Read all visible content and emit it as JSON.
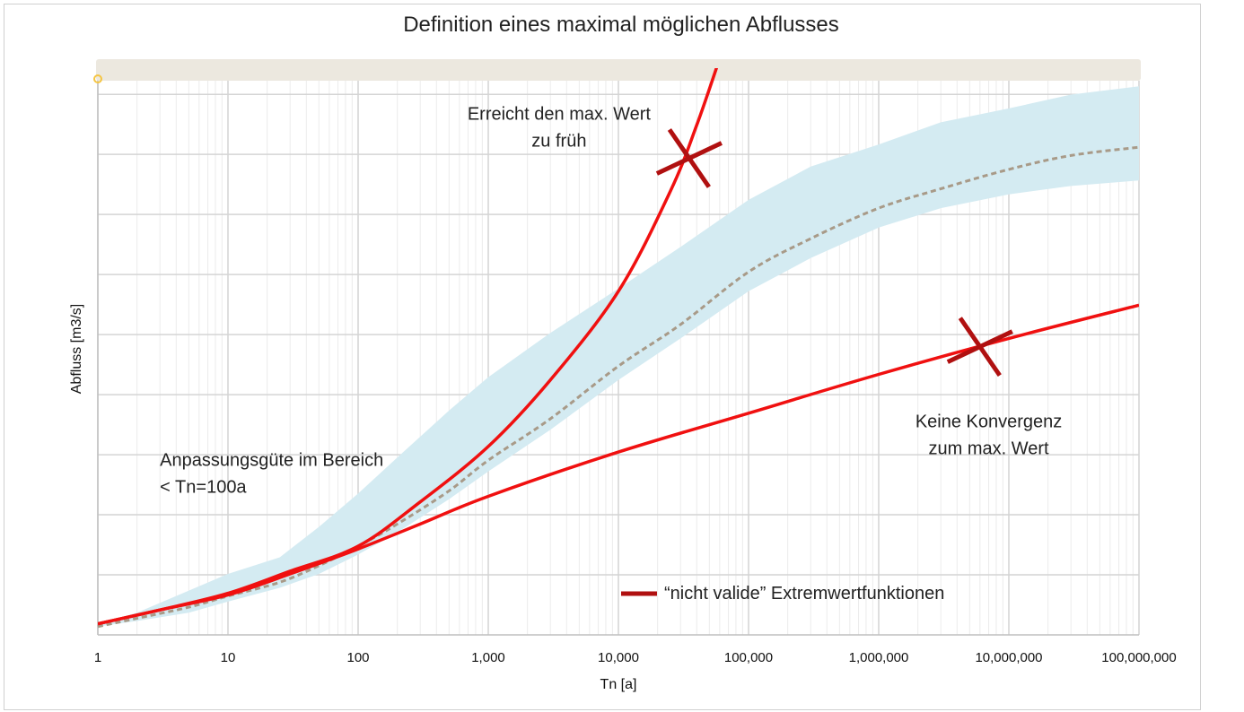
{
  "chart_data": {
    "type": "line",
    "title": "Definition eines maximal möglichen Abflusses",
    "xlabel": "Tn [a]",
    "ylabel": "Abfluss [m3/s]",
    "x_scale": "log",
    "xlim": [
      1,
      100000000
    ],
    "ylim": [
      0,
      10
    ],
    "y_tick_labels_shown": false,
    "grid": "on",
    "x_tick_labels": [
      "1",
      "10",
      "100",
      "1,000",
      "10,000",
      "100,000",
      "1,000,000",
      "10,000,000",
      "100,000,000"
    ],
    "x_tick_values": [
      1,
      10,
      100,
      1000,
      10000,
      100000,
      1000000,
      10000000,
      100000000
    ],
    "band_top_color": "#ece8df",
    "colors": {
      "red": "#f01010",
      "darkred": "#b01010",
      "band": "#d4ebf2",
      "dash": "#a89a88"
    },
    "series": [
      {
        "kind": "band",
        "x": [
          1,
          2,
          5,
          10,
          25,
          50,
          100,
          200,
          500,
          1000,
          3000,
          10000,
          30000,
          100000,
          300000,
          1000000,
          3000000,
          10000000,
          30000000,
          100000000
        ],
        "lower": [
          0.15,
          0.25,
          0.4,
          0.6,
          0.85,
          1.1,
          1.45,
          1.85,
          2.45,
          2.95,
          3.7,
          4.6,
          5.35,
          6.2,
          6.8,
          7.35,
          7.7,
          7.95,
          8.1,
          8.2
        ],
        "upper": [
          0.2,
          0.4,
          0.8,
          1.1,
          1.4,
          1.95,
          2.55,
          3.2,
          4.05,
          4.65,
          5.45,
          6.25,
          7.0,
          7.85,
          8.45,
          8.85,
          9.25,
          9.5,
          9.75,
          9.9
        ]
      },
      {
        "kind": "median",
        "x": [
          1,
          2,
          5,
          10,
          25,
          50,
          100,
          200,
          500,
          1000,
          3000,
          10000,
          30000,
          100000,
          300000,
          1000000,
          3000000,
          10000000,
          30000000,
          100000000
        ],
        "values": [
          0.15,
          0.3,
          0.5,
          0.7,
          0.95,
          1.25,
          1.6,
          2.0,
          2.6,
          3.15,
          3.9,
          4.85,
          5.6,
          6.55,
          7.15,
          7.7,
          8.05,
          8.4,
          8.65,
          8.8
        ]
      },
      {
        "kind": "red",
        "x": [
          1,
          3,
          10,
          30,
          100,
          300,
          1000,
          3000,
          10000,
          25000,
          40000,
          60000
        ],
        "values": [
          0.2,
          0.45,
          0.75,
          1.15,
          1.6,
          2.4,
          3.4,
          4.6,
          6.2,
          8.0,
          9.2,
          10.4
        ]
      },
      {
        "kind": "red",
        "x": [
          1,
          3,
          10,
          30,
          100,
          300,
          1000,
          10000,
          100000,
          1000000,
          10000000,
          100000000
        ],
        "values": [
          0.2,
          0.45,
          0.72,
          1.1,
          1.55,
          2.0,
          2.5,
          3.3,
          4.0,
          4.7,
          5.35,
          5.95
        ]
      }
    ],
    "markers": [
      {
        "x": 35000,
        "y": 8.6
      },
      {
        "x": 6000000,
        "y": 5.2
      }
    ],
    "annotations": [
      {
        "lines": [
          "Erreicht den max. Wert",
          "zu früh"
        ],
        "x": 3500,
        "y": 9.3,
        "anchor": "middle"
      },
      {
        "lines": [
          "Keine Konvergenz",
          "zum max. Wert"
        ],
        "x": 7000000,
        "y": 3.75,
        "anchor": "middle"
      },
      {
        "lines": [
          "Anpassungsgüte im Bereich",
          "< Tn=100a"
        ],
        "x": 3,
        "y": 3.05,
        "anchor": "start"
      }
    ],
    "legend": {
      "label": "“nicht valide” Extremwertfunktionen",
      "position": "bottom-right"
    }
  }
}
